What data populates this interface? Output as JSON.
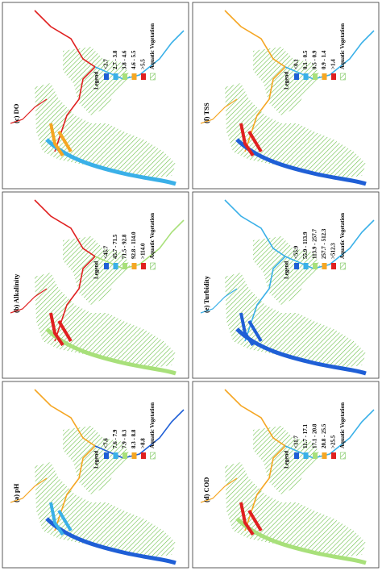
{
  "panels": [
    {
      "title": "(a) pH",
      "legend_title": "Legend",
      "items": [
        "<7.6",
        "7.6 - 7.9",
        "7.9 - 8.3",
        "8.3 - 8.8",
        ">8.8"
      ],
      "vegetation": "Aquatic Vegetation"
    },
    {
      "title": "(b) Alkalinity",
      "legend_title": "Legend",
      "items": [
        "<45.7",
        "45.7 - 71.5",
        "71.5 - 92.8",
        "92.8 - 114.0",
        ">114.0"
      ],
      "vegetation": "Aquatic Vegetation"
    },
    {
      "title": "(c) DO",
      "legend_title": "Legend",
      "items": [
        "<2.7",
        "2.7 - 3.8",
        "3.8 - 4.6",
        "4.6 - 5.5",
        ">5.5"
      ],
      "vegetation": "Aquatic Vegetation"
    },
    {
      "title": "(d) COD",
      "legend_title": "Legend",
      "items": [
        "<11.7",
        "11.7 - 17.1",
        "17.1 - 20.8",
        "20.8 - 25.5",
        ">25.5"
      ],
      "vegetation": "Aquatic Vegetation"
    },
    {
      "title": "(e) Turbidity",
      "legend_title": "Legend",
      "items": [
        "<55.9",
        "55.9 - 113.9",
        "113.9 - 257.7",
        "257.7 - 512.3",
        ">512.3"
      ],
      "vegetation": "Aquatic Vegetation"
    },
    {
      "title": "(f) TSS",
      "legend_title": "Legend",
      "items": [
        "<0.1",
        "0.1 - 0.5",
        "0.5 - 0.9",
        "0.9 - 1.4",
        ">1.4"
      ],
      "vegetation": "Aquatic Vegetation"
    }
  ]
}
